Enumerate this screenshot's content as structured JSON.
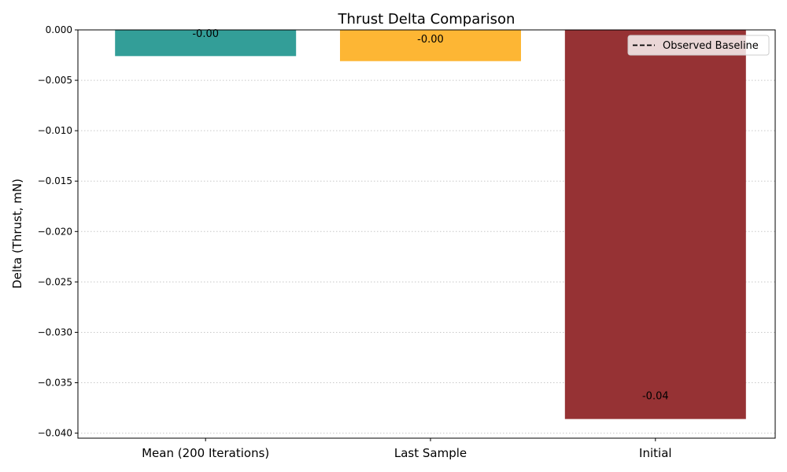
{
  "chart_data": {
    "type": "bar",
    "title": "Thrust Delta Comparison",
    "xlabel": "",
    "ylabel": "Delta (Thrust, mN)",
    "categories": [
      "Mean (200 Iterations)",
      "Last Sample",
      "Initial"
    ],
    "values": [
      -0.0026,
      -0.0031,
      -0.0386
    ],
    "value_labels": [
      "-0.00",
      "-0.00",
      "-0.04"
    ],
    "colors": [
      "#339e98",
      "#fdb634",
      "#963234"
    ],
    "ylim": [
      -0.0405,
      0.0
    ],
    "yticks": [
      0.0,
      -0.005,
      -0.01,
      -0.015,
      -0.02,
      -0.025,
      -0.03,
      -0.035,
      -0.04
    ],
    "ytick_labels": [
      "0.000",
      "−0.005",
      "−0.010",
      "−0.015",
      "−0.020",
      "−0.025",
      "−0.030",
      "−0.035",
      "−0.040"
    ],
    "grid": "horizontal-dotted",
    "legend": {
      "placement": "top-right",
      "entries": [
        {
          "label": "Observed Baseline",
          "style": "dashed-line",
          "color": "#000000"
        }
      ]
    }
  }
}
